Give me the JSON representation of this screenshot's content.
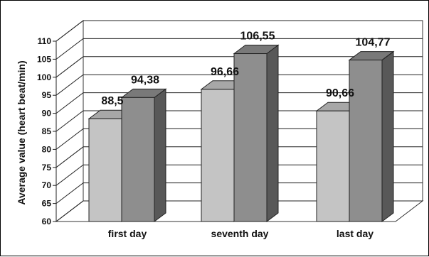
{
  "chart_data": {
    "type": "bar",
    "title": "",
    "xlabel": "",
    "ylabel": "Average value (heart beat/min)",
    "ylim": [
      60,
      110
    ],
    "y_ticks": [
      60,
      65,
      70,
      75,
      80,
      85,
      90,
      95,
      100,
      105,
      110
    ],
    "grid": true,
    "legend": "none",
    "three_d": true,
    "categories": [
      "first day",
      "seventh day",
      "last day"
    ],
    "series": [
      {
        "values": [
          88.5,
          96.66,
          90.66
        ],
        "labels": [
          "88,5",
          "96,66",
          "90,66"
        ],
        "color": "#c4c4c4"
      },
      {
        "values": [
          94.38,
          106.55,
          104.77
        ],
        "labels": [
          "94,38",
          "106,55",
          "104,77"
        ],
        "color": "#8e8e8e"
      }
    ]
  }
}
